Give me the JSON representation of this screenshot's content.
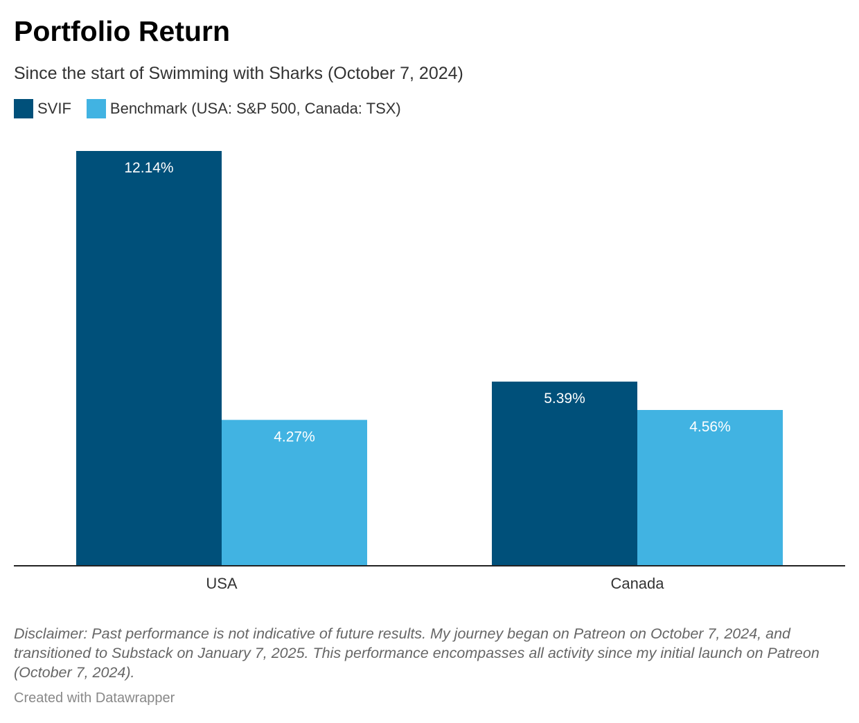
{
  "header": {
    "title": "Portfolio Return",
    "subtitle": "Since the start of Swimming with Sharks (October 7, 2024)"
  },
  "legend": [
    {
      "label": "SVIF",
      "color": "#00507a"
    },
    {
      "label": "Benchmark (USA: S&P 500, Canada: TSX)",
      "color": "#41b3e2"
    }
  ],
  "chart_data": {
    "type": "bar",
    "categories": [
      "USA",
      "Canada"
    ],
    "series": [
      {
        "name": "SVIF",
        "color": "#00507a",
        "values": [
          12.14,
          5.39
        ],
        "labels": [
          "12.14%",
          "5.39%"
        ]
      },
      {
        "name": "Benchmark (USA: S&P 500, Canada: TSX)",
        "color": "#41b3e2",
        "values": [
          4.27,
          4.56
        ],
        "labels": [
          "4.27%",
          "4.56%"
        ]
      }
    ],
    "ylim": [
      0,
      12.14
    ],
    "grid": false,
    "legend_position": "top-left"
  },
  "footer": {
    "note": "Disclaimer: Past performance is not indicative of future results. My journey began on Patreon on October 7, 2024, and transitioned to Substack on January 7, 2025. This performance encompasses all activity since my initial launch on Patreon (October 7, 2024).",
    "credit": "Created with Datawrapper"
  }
}
